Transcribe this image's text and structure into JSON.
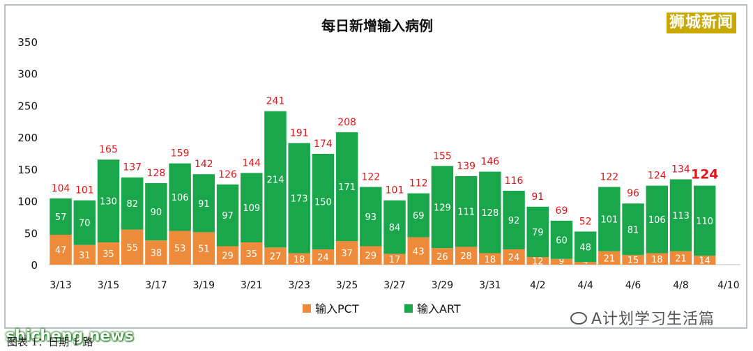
{
  "chart_data": {
    "type": "bar",
    "stacked": true,
    "title": "每日新增输入病例",
    "categories": [
      "3/13",
      "3/14",
      "3/15",
      "3/16",
      "3/17",
      "3/18",
      "3/19",
      "3/20",
      "3/21",
      "3/22",
      "3/23",
      "3/24",
      "3/25",
      "3/26",
      "3/27",
      "3/28",
      "3/29",
      "3/30",
      "3/31",
      "4/1",
      "4/2",
      "4/3",
      "4/4",
      "4/5",
      "4/6",
      "4/7",
      "4/8",
      "4/9",
      "4/10"
    ],
    "tick_labels": [
      "3/13",
      "",
      "3/15",
      "",
      "3/17",
      "",
      "3/19",
      "",
      "3/21",
      "",
      "3/23",
      "",
      "3/25",
      "",
      "3/27",
      "",
      "3/29",
      "",
      "3/31",
      "",
      "4/2",
      "",
      "4/4",
      "",
      "4/6",
      "",
      "4/8",
      "",
      "4/10"
    ],
    "series": [
      {
        "name": "输入PCT",
        "color": "#ed8b3a",
        "values": [
          47,
          31,
          35,
          55,
          38,
          53,
          51,
          29,
          35,
          27,
          18,
          24,
          37,
          29,
          17,
          43,
          26,
          28,
          18,
          24,
          12,
          9,
          4,
          21,
          15,
          18,
          21,
          14,
          null
        ]
      },
      {
        "name": "输入ART",
        "color": "#1aa64b",
        "values": [
          57,
          70,
          130,
          82,
          90,
          106,
          91,
          97,
          109,
          214,
          173,
          150,
          171,
          93,
          84,
          69,
          129,
          111,
          128,
          92,
          79,
          60,
          48,
          101,
          81,
          106,
          113,
          110,
          null
        ]
      }
    ],
    "totals": [
      104,
      101,
      165,
      137,
      128,
      159,
      142,
      126,
      144,
      241,
      191,
      174,
      208,
      122,
      101,
      112,
      155,
      139,
      146,
      116,
      91,
      69,
      52,
      122,
      96,
      124,
      134,
      124,
      null
    ],
    "ylim": [
      0,
      350
    ],
    "yticks": [
      0,
      50,
      100,
      150,
      200,
      250,
      300,
      350
    ],
    "xlabel": "",
    "ylabel": "",
    "grid": false,
    "legend": "bottom-center",
    "total_label_color": "#e0161b"
  },
  "branding": {
    "logo_text": "狮城新闻",
    "site_watermark": "shicheng.news",
    "account_watermark": "A计划学习生活篇",
    "caption": "图表 1：日期 1 路"
  }
}
